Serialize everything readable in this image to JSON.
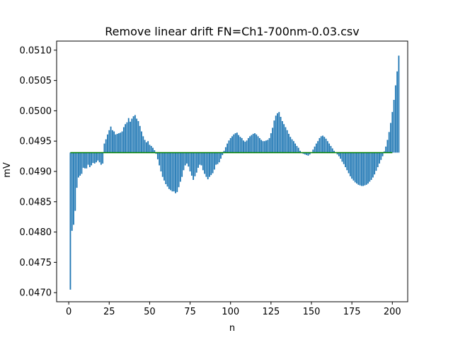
{
  "chart_data": {
    "type": "bar",
    "title": "Remove linear drift FN=Ch1-700nm-0.03.csv",
    "xlabel": "n",
    "ylabel": "mV",
    "xlim": [
      -7.5,
      209.5
    ],
    "ylim": [
      0.04685,
      0.05115
    ],
    "xticks": [
      0,
      25,
      50,
      75,
      100,
      125,
      150,
      175,
      200
    ],
    "yticks": [
      0.047,
      0.0475,
      0.048,
      0.0485,
      0.049,
      0.0495,
      0.05,
      0.0505,
      0.051
    ],
    "ytick_labels": [
      "0.0470",
      "0.0475",
      "0.0480",
      "0.0485",
      "0.0490",
      "0.0495",
      "0.0500",
      "0.0505",
      "0.0510"
    ],
    "baseline": 0.04931,
    "x_start": 1,
    "bar_values": [
      0.04705,
      0.04802,
      0.04812,
      0.04835,
      0.04873,
      0.0489,
      0.04893,
      0.04896,
      0.04906,
      0.04905,
      0.04905,
      0.04911,
      0.04907,
      0.0491,
      0.04914,
      0.04913,
      0.04915,
      0.04918,
      0.04915,
      0.04911,
      0.04913,
      0.04946,
      0.04953,
      0.04961,
      0.04968,
      0.04974,
      0.04968,
      0.04966,
      0.04961,
      0.04962,
      0.04963,
      0.04964,
      0.04966,
      0.04973,
      0.04978,
      0.04981,
      0.04988,
      0.04982,
      0.04987,
      0.04991,
      0.04993,
      0.04987,
      0.04983,
      0.04975,
      0.04966,
      0.04958,
      0.04952,
      0.04948,
      0.0495,
      0.04944,
      0.04942,
      0.04939,
      0.04935,
      0.04929,
      0.0492,
      0.0491,
      0.049,
      0.04891,
      0.04885,
      0.04879,
      0.04875,
      0.04871,
      0.04869,
      0.04867,
      0.04867,
      0.04864,
      0.04866,
      0.04874,
      0.04883,
      0.04891,
      0.04902,
      0.0491,
      0.04913,
      0.04908,
      0.049,
      0.04893,
      0.04886,
      0.04892,
      0.04898,
      0.04906,
      0.04911,
      0.0491,
      0.04902,
      0.04896,
      0.04891,
      0.04887,
      0.04891,
      0.04894,
      0.04897,
      0.04903,
      0.04911,
      0.04912,
      0.04915,
      0.04921,
      0.04927,
      0.04934,
      0.0494,
      0.04946,
      0.04951,
      0.04955,
      0.04958,
      0.04961,
      0.04963,
      0.04964,
      0.0496,
      0.04957,
      0.04955,
      0.04951,
      0.04949,
      0.04951,
      0.04955,
      0.04958,
      0.0496,
      0.04962,
      0.04963,
      0.04961,
      0.04958,
      0.04955,
      0.04952,
      0.0495,
      0.0495,
      0.04951,
      0.04952,
      0.04955,
      0.04963,
      0.04972,
      0.04984,
      0.04992,
      0.04996,
      0.04998,
      0.0499,
      0.04983,
      0.04978,
      0.04973,
      0.04968,
      0.04962,
      0.04957,
      0.04953,
      0.0495,
      0.04946,
      0.04942,
      0.04939,
      0.04934,
      0.04931,
      0.04929,
      0.04928,
      0.04927,
      0.04926,
      0.04928,
      0.04931,
      0.04936,
      0.04941,
      0.04946,
      0.0495,
      0.04955,
      0.04958,
      0.04959,
      0.04957,
      0.04954,
      0.0495,
      0.04946,
      0.04942,
      0.04938,
      0.04934,
      0.04931,
      0.04928,
      0.04925,
      0.04921,
      0.04916,
      0.04912,
      0.04907,
      0.04902,
      0.04897,
      0.04892,
      0.04888,
      0.04885,
      0.04882,
      0.0488,
      0.04878,
      0.04877,
      0.04876,
      0.04876,
      0.04877,
      0.04878,
      0.0488,
      0.04883,
      0.04886,
      0.0489,
      0.04895,
      0.04901,
      0.04907,
      0.04913,
      0.04919,
      0.04925,
      0.04933,
      0.04941,
      0.04952,
      0.04965,
      0.0498,
      0.04998,
      0.05018,
      0.05042,
      0.05065,
      0.05091
    ],
    "line": {
      "name": "",
      "value": 0.04931,
      "x_range": [
        1,
        200
      ],
      "color": "#008000"
    },
    "bar_color": "#1f77b4",
    "grid": false
  }
}
